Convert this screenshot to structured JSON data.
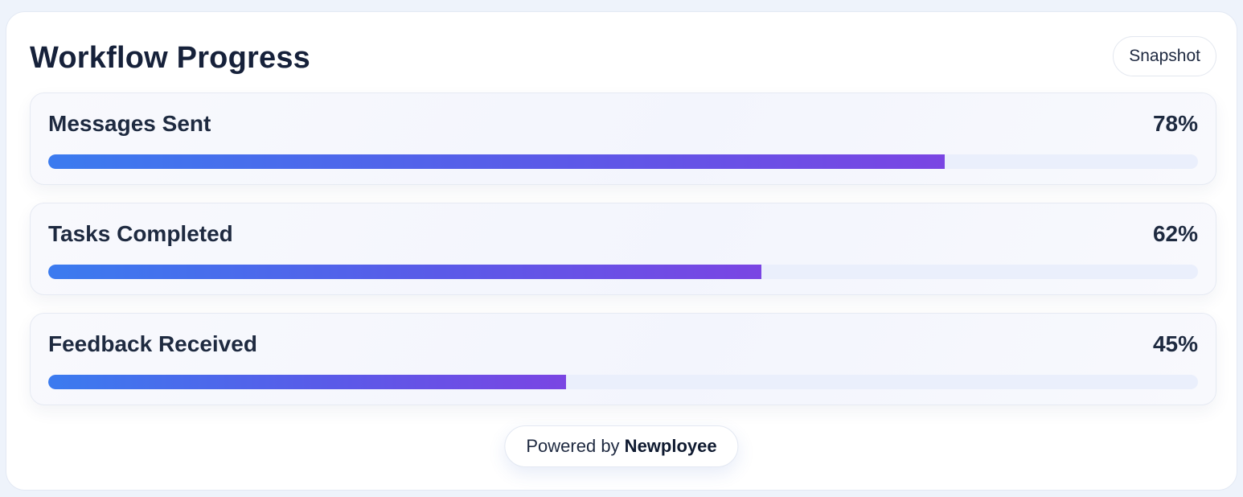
{
  "header": {
    "title": "Workflow Progress",
    "snapshot_label": "Snapshot"
  },
  "metrics": [
    {
      "label": "Messages Sent",
      "value_text": "78%",
      "percent": 78
    },
    {
      "label": "Tasks Completed",
      "value_text": "62%",
      "percent": 62
    },
    {
      "label": "Feedback Received",
      "value_text": "45%",
      "percent": 45
    }
  ],
  "footer": {
    "prefix": "Powered by",
    "brand": "Newployee"
  },
  "colors": {
    "gradient_start": "#3b7bef",
    "gradient_end": "#7a45e3",
    "track": "#eaeffc",
    "text_dark": "#1e2a40"
  }
}
